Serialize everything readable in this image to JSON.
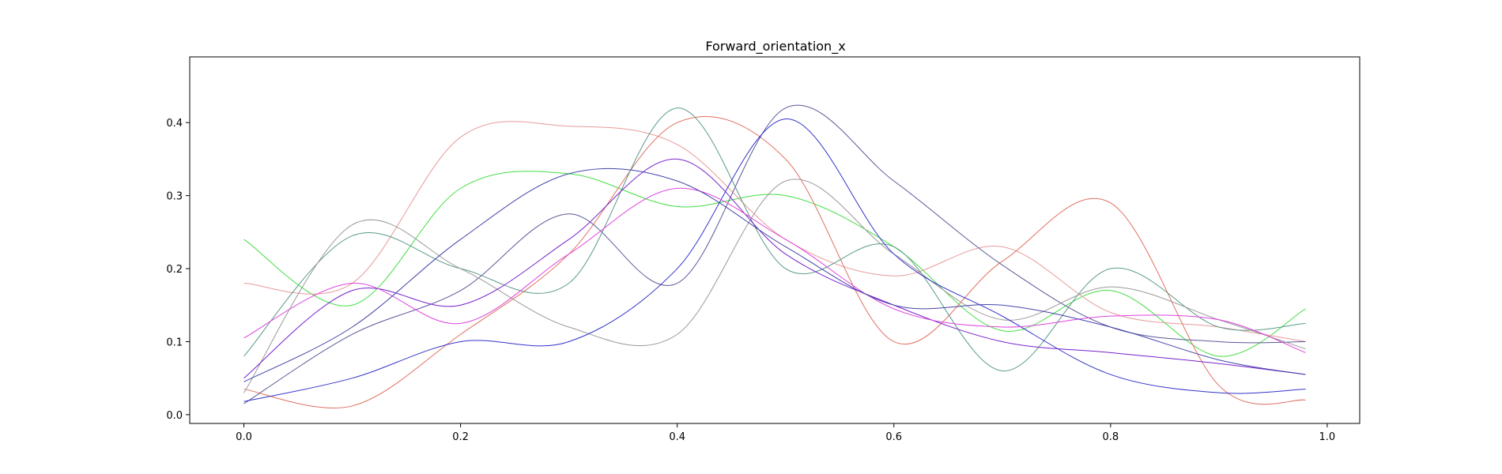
{
  "chart_data": {
    "type": "line",
    "title": "Forward_orientation_x",
    "xlabel": "",
    "ylabel": "",
    "xlim": [
      -0.05,
      1.03
    ],
    "ylim": [
      -0.012,
      0.49
    ],
    "xticks": [
      0.0,
      0.2,
      0.4,
      0.6,
      0.8,
      1.0
    ],
    "xtick_labels": [
      "0.0",
      "0.2",
      "0.4",
      "0.6",
      "0.8",
      "1.0"
    ],
    "yticks": [
      0.0,
      0.1,
      0.2,
      0.3,
      0.4
    ],
    "ytick_labels": [
      "0.0",
      "0.1",
      "0.2",
      "0.3",
      "0.4"
    ],
    "grid": false,
    "legend": "none",
    "x": [
      0.0,
      0.1,
      0.2,
      0.3,
      0.4,
      0.5,
      0.6,
      0.7,
      0.8,
      0.9,
      0.98
    ],
    "series": [
      {
        "color": "#44dd44",
        "values": [
          0.24,
          0.15,
          0.31,
          0.33,
          0.285,
          0.3,
          0.23,
          0.115,
          0.17,
          0.08,
          0.145
        ]
      },
      {
        "color": "#e89a9a",
        "values": [
          0.18,
          0.18,
          0.38,
          0.395,
          0.37,
          0.24,
          0.19,
          0.23,
          0.14,
          0.12,
          0.1
        ]
      },
      {
        "color": "#e07060",
        "values": [
          0.035,
          0.012,
          0.11,
          0.22,
          0.4,
          0.35,
          0.1,
          0.21,
          0.29,
          0.04,
          0.02
        ]
      },
      {
        "color": "#5a5a9a",
        "values": [
          0.015,
          0.11,
          0.17,
          0.275,
          0.18,
          0.42,
          0.32,
          0.205,
          0.12,
          0.1,
          0.1
        ]
      },
      {
        "color": "#5a9a8a",
        "values": [
          0.08,
          0.245,
          0.2,
          0.18,
          0.42,
          0.2,
          0.23,
          0.06,
          0.2,
          0.12,
          0.125
        ]
      },
      {
        "color": "#999999",
        "values": [
          0.03,
          0.26,
          0.2,
          0.12,
          0.11,
          0.32,
          0.22,
          0.13,
          0.175,
          0.13,
          0.09
        ]
      },
      {
        "color": "#3333cc",
        "values": [
          0.018,
          0.05,
          0.1,
          0.1,
          0.2,
          0.405,
          0.22,
          0.135,
          0.055,
          0.03,
          0.035
        ]
      },
      {
        "color": "#7722cc",
        "values": [
          0.05,
          0.17,
          0.15,
          0.24,
          0.35,
          0.22,
          0.15,
          0.1,
          0.085,
          0.07,
          0.055
        ]
      },
      {
        "color": "#dd44dd",
        "values": [
          0.105,
          0.18,
          0.125,
          0.22,
          0.31,
          0.24,
          0.145,
          0.12,
          0.135,
          0.13,
          0.085
        ]
      },
      {
        "color": "#4444aa",
        "values": [
          0.045,
          0.12,
          0.24,
          0.33,
          0.32,
          0.23,
          0.15,
          0.15,
          0.12,
          0.075,
          0.055
        ]
      }
    ]
  }
}
